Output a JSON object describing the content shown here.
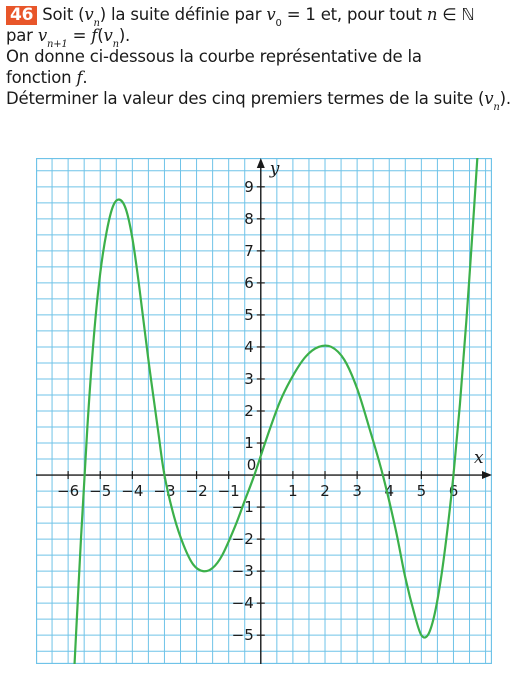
{
  "exercise": {
    "number": "46",
    "line1": {
      "t1": "Soit (",
      "v": "v",
      "n": "n",
      "t2": ") la suite définie par ",
      "v0": "v",
      "zero": "0",
      "t3": " = 1 et, pour tout ",
      "nvar": "n",
      "in": " ∈ ",
      "N": "ℕ"
    },
    "line2": {
      "t1": "par ",
      "v": "v",
      "sub": "n+1",
      "eq": " = ",
      "f": "f",
      "open": "(",
      "v2": "v",
      "sub2": "n",
      "close": ")."
    },
    "line3": "On donne ci-dessous la courbe représentative de la",
    "line4": {
      "t1": "fonction ",
      "f": "f",
      "dot": "."
    },
    "line5": {
      "t1": "Déterminer la valeur des cinq premiers termes de la suite (",
      "v": "v",
      "n": "n",
      "t2": ")."
    }
  },
  "chart_data": {
    "type": "line",
    "xlabel": "x",
    "ylabel": "y",
    "xlim": [
      -7,
      7.2
    ],
    "ylim": [
      -5.9,
      9.9
    ],
    "grid": true,
    "x_ticks": [
      -6,
      -5,
      -4,
      -3,
      -2,
      -1,
      1,
      2,
      3,
      4,
      5,
      6
    ],
    "y_ticks": [
      -5,
      -4,
      -3,
      -2,
      -1,
      1,
      2,
      3,
      4,
      5,
      6,
      7,
      8,
      9
    ],
    "origin_label": "0",
    "series": [
      {
        "color": "#3cb04a",
        "points": [
          [
            -5.8,
            -5.9
          ],
          [
            -5.6,
            -2.0
          ],
          [
            -5.4,
            1.5
          ],
          [
            -5.2,
            4.3
          ],
          [
            -5.0,
            6.3
          ],
          [
            -4.8,
            7.6
          ],
          [
            -4.6,
            8.4
          ],
          [
            -4.4,
            8.6
          ],
          [
            -4.2,
            8.3
          ],
          [
            -4.0,
            7.4
          ],
          [
            -3.8,
            6.0
          ],
          [
            -3.5,
            3.6
          ],
          [
            -3.2,
            1.4
          ],
          [
            -3.0,
            0.0
          ],
          [
            -2.7,
            -1.3
          ],
          [
            -2.4,
            -2.2
          ],
          [
            -2.1,
            -2.8
          ],
          [
            -1.8,
            -3.0
          ],
          [
            -1.5,
            -2.9
          ],
          [
            -1.2,
            -2.5
          ],
          [
            -0.8,
            -1.6
          ],
          [
            -0.5,
            -0.8
          ],
          [
            -0.2,
            0.0
          ],
          [
            0.2,
            1.2
          ],
          [
            0.6,
            2.3
          ],
          [
            1.0,
            3.1
          ],
          [
            1.4,
            3.7
          ],
          [
            1.8,
            4.0
          ],
          [
            2.2,
            4.0
          ],
          [
            2.6,
            3.6
          ],
          [
            3.0,
            2.7
          ],
          [
            3.4,
            1.4
          ],
          [
            3.8,
            0.0
          ],
          [
            4.2,
            -1.7
          ],
          [
            4.5,
            -3.2
          ],
          [
            4.8,
            -4.4
          ],
          [
            5.0,
            -5.0
          ],
          [
            5.2,
            -5.0
          ],
          [
            5.4,
            -4.4
          ],
          [
            5.6,
            -3.3
          ],
          [
            5.8,
            -1.8
          ],
          [
            6.0,
            0.0
          ],
          [
            6.2,
            2.2
          ],
          [
            6.4,
            4.8
          ],
          [
            6.6,
            7.7
          ],
          [
            6.75,
            10.0
          ]
        ]
      }
    ]
  },
  "colors": {
    "grid": "#6fc3e8",
    "curve": "#3cb04a",
    "badge": "#e8562a",
    "axis": "#1a1a1a"
  }
}
